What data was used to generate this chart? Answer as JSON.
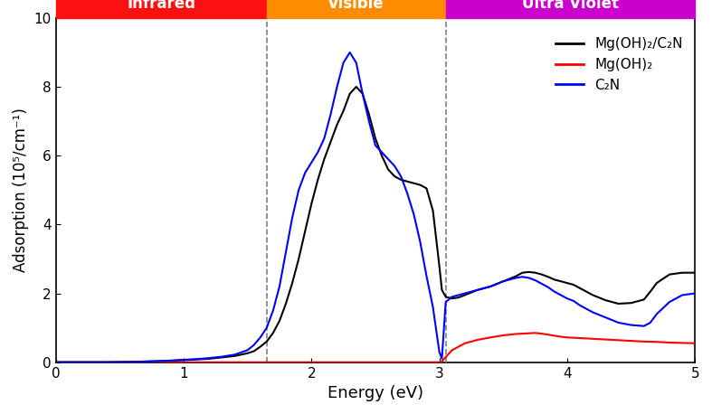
{
  "xlim": [
    0,
    5
  ],
  "ylim": [
    0,
    10
  ],
  "xlabel": "Energy (eV)",
  "ylabel": "Adsorption (10⁵/cm⁻¹)",
  "xticks": [
    0,
    1,
    2,
    3,
    4,
    5
  ],
  "yticks": [
    0,
    2,
    4,
    6,
    8,
    10
  ],
  "vline1": 1.65,
  "vline2": 3.05,
  "band_regions": [
    {
      "label": "Infrared",
      "xmin": 0,
      "xmax": 1.65,
      "color": "#FF1010"
    },
    {
      "label": "Visible",
      "xmin": 1.65,
      "xmax": 3.05,
      "color": "#FF8C00"
    },
    {
      "label": "Ultra Violet",
      "xmin": 3.05,
      "xmax": 5.0,
      "color": "#CC00CC"
    }
  ],
  "legend_entries": [
    {
      "label": "Mg(OH)₂/C₂N",
      "color": "#000000"
    },
    {
      "label": "Mg(OH)₂",
      "color": "#FF0000"
    },
    {
      "label": "C₂N",
      "color": "#0000FF"
    }
  ],
  "line_black_x": [
    0.0,
    0.2,
    0.4,
    0.6,
    0.7,
    0.8,
    0.9,
    1.0,
    1.1,
    1.2,
    1.3,
    1.4,
    1.5,
    1.55,
    1.6,
    1.65,
    1.7,
    1.75,
    1.8,
    1.85,
    1.9,
    1.95,
    2.0,
    2.05,
    2.1,
    2.15,
    2.2,
    2.25,
    2.3,
    2.35,
    2.4,
    2.45,
    2.5,
    2.55,
    2.6,
    2.65,
    2.7,
    2.75,
    2.8,
    2.85,
    2.9,
    2.95,
    3.0,
    3.02,
    3.05,
    3.1,
    3.15,
    3.2,
    3.3,
    3.4,
    3.5,
    3.6,
    3.65,
    3.7,
    3.75,
    3.8,
    3.85,
    3.9,
    3.95,
    4.0,
    4.05,
    4.1,
    4.2,
    4.3,
    4.4,
    4.5,
    4.6,
    4.65,
    4.7,
    4.8,
    4.9,
    5.0
  ],
  "line_black_y": [
    0.0,
    0.0,
    0.0,
    0.01,
    0.02,
    0.03,
    0.04,
    0.06,
    0.08,
    0.1,
    0.14,
    0.18,
    0.26,
    0.32,
    0.45,
    0.6,
    0.85,
    1.2,
    1.7,
    2.3,
    3.0,
    3.8,
    4.6,
    5.3,
    5.9,
    6.4,
    6.9,
    7.3,
    7.8,
    8.0,
    7.8,
    7.2,
    6.5,
    6.0,
    5.6,
    5.4,
    5.3,
    5.25,
    5.2,
    5.15,
    5.05,
    4.4,
    2.8,
    2.1,
    1.9,
    1.85,
    1.88,
    1.95,
    2.1,
    2.2,
    2.35,
    2.5,
    2.6,
    2.62,
    2.6,
    2.55,
    2.48,
    2.4,
    2.35,
    2.3,
    2.25,
    2.15,
    1.95,
    1.8,
    1.7,
    1.72,
    1.82,
    2.05,
    2.3,
    2.55,
    2.6,
    2.6
  ],
  "line_red_x": [
    0.0,
    0.5,
    1.0,
    1.5,
    2.0,
    2.5,
    3.0,
    3.02,
    3.05,
    3.1,
    3.2,
    3.3,
    3.4,
    3.5,
    3.6,
    3.7,
    3.75,
    3.8,
    3.85,
    3.9,
    3.95,
    4.0,
    4.1,
    4.2,
    4.3,
    4.4,
    4.5,
    4.6,
    4.7,
    4.8,
    4.9,
    5.0
  ],
  "line_red_y": [
    0.0,
    0.0,
    0.0,
    0.0,
    0.0,
    0.0,
    0.0,
    0.02,
    0.15,
    0.35,
    0.55,
    0.65,
    0.72,
    0.78,
    0.82,
    0.84,
    0.85,
    0.83,
    0.8,
    0.77,
    0.74,
    0.72,
    0.7,
    0.68,
    0.66,
    0.64,
    0.62,
    0.6,
    0.59,
    0.57,
    0.56,
    0.55
  ],
  "line_blue_x": [
    0.0,
    0.2,
    0.4,
    0.6,
    0.7,
    0.8,
    0.9,
    1.0,
    1.1,
    1.2,
    1.3,
    1.4,
    1.5,
    1.55,
    1.6,
    1.65,
    1.7,
    1.75,
    1.8,
    1.85,
    1.9,
    1.95,
    2.0,
    2.05,
    2.1,
    2.15,
    2.2,
    2.25,
    2.3,
    2.35,
    2.4,
    2.45,
    2.5,
    2.55,
    2.6,
    2.65,
    2.7,
    2.75,
    2.8,
    2.85,
    2.9,
    2.95,
    3.0,
    3.02,
    3.05,
    3.1,
    3.15,
    3.2,
    3.3,
    3.4,
    3.5,
    3.6,
    3.65,
    3.7,
    3.75,
    3.8,
    3.85,
    3.9,
    3.95,
    4.0,
    4.05,
    4.1,
    4.2,
    4.3,
    4.4,
    4.5,
    4.6,
    4.65,
    4.7,
    4.8,
    4.9,
    5.0
  ],
  "line_blue_y": [
    0.0,
    0.0,
    0.0,
    0.01,
    0.02,
    0.03,
    0.05,
    0.07,
    0.09,
    0.12,
    0.16,
    0.22,
    0.35,
    0.5,
    0.72,
    1.0,
    1.5,
    2.2,
    3.2,
    4.2,
    5.0,
    5.5,
    5.8,
    6.1,
    6.5,
    7.2,
    8.0,
    8.7,
    9.0,
    8.7,
    7.8,
    7.0,
    6.3,
    6.1,
    5.9,
    5.7,
    5.4,
    4.9,
    4.3,
    3.5,
    2.5,
    1.6,
    0.3,
    0.1,
    1.75,
    1.9,
    1.95,
    2.0,
    2.1,
    2.2,
    2.35,
    2.45,
    2.48,
    2.45,
    2.38,
    2.28,
    2.18,
    2.05,
    1.95,
    1.85,
    1.78,
    1.65,
    1.45,
    1.3,
    1.15,
    1.08,
    1.05,
    1.15,
    1.4,
    1.75,
    1.95,
    2.0
  ]
}
